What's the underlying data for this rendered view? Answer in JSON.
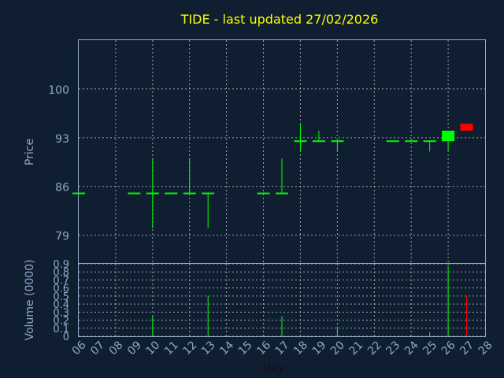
{
  "chart_data": [
    {
      "type": "candlestick",
      "title": "TIDE - last updated 27/02/2026",
      "xlabel": "",
      "ylabel": "Price",
      "ylim": [
        75,
        107
      ],
      "yticks": [
        79,
        86,
        93,
        100
      ],
      "grid": true,
      "candles": [
        {
          "day": 6,
          "open": 85,
          "close": 85,
          "high": 85,
          "low": 85
        },
        {
          "day": 9,
          "open": 85,
          "close": 85,
          "high": 85,
          "low": 85
        },
        {
          "day": 10,
          "open": 85,
          "close": 85,
          "high": 90,
          "low": 80
        },
        {
          "day": 11,
          "open": 85,
          "close": 85,
          "high": 85,
          "low": 85
        },
        {
          "day": 12,
          "open": 85,
          "close": 85,
          "high": 90,
          "low": 85
        },
        {
          "day": 13,
          "open": 85,
          "close": 85,
          "high": 85,
          "low": 80
        },
        {
          "day": 16,
          "open": 85,
          "close": 85,
          "high": 85,
          "low": 85
        },
        {
          "day": 17,
          "open": 85,
          "close": 85,
          "high": 90,
          "low": 85
        },
        {
          "day": 18,
          "open": 92.5,
          "close": 92.5,
          "high": 95,
          "low": 91
        },
        {
          "day": 19,
          "open": 92.5,
          "close": 92.5,
          "high": 94,
          "low": 92.5
        },
        {
          "day": 20,
          "open": 92.5,
          "close": 92.5,
          "high": 92.5,
          "low": 91
        },
        {
          "day": 23,
          "open": 92.5,
          "close": 92.5,
          "high": 92.5,
          "low": 92.5
        },
        {
          "day": 24,
          "open": 92.5,
          "close": 92.5,
          "high": 92.5,
          "low": 92.5
        },
        {
          "day": 25,
          "open": 92.5,
          "close": 92.5,
          "high": 92.5,
          "low": 91
        },
        {
          "day": 26,
          "open": 92.5,
          "close": 94,
          "high": 94,
          "low": 91
        },
        {
          "day": 27,
          "open": 95,
          "close": 94,
          "high": 95,
          "low": 94
        }
      ],
      "colors": {
        "up": "#00ff00",
        "down": "#ff0000"
      }
    },
    {
      "type": "bar",
      "xlabel": "Day",
      "ylabel": "Volume (0000)",
      "ylim": [
        0,
        0.9
      ],
      "yticks": [
        0,
        0.1,
        0.2,
        0.3,
        0.4,
        0.5,
        0.6,
        0.7,
        0.8,
        0.9
      ],
      "ytick_labels": [
        "0",
        "0.1",
        "0.2",
        "0.3",
        "0.4",
        "0.5",
        "0.6",
        "0.7",
        "0.8",
        "0.9"
      ],
      "x_ticks": [
        6,
        7,
        8,
        9,
        10,
        11,
        12,
        13,
        14,
        15,
        16,
        17,
        18,
        19,
        20,
        21,
        22,
        23,
        24,
        25,
        26,
        27,
        28
      ],
      "x_tick_labels": [
        "06",
        "07",
        "08",
        "09",
        "10",
        "11",
        "12",
        "13",
        "14",
        "15",
        "16",
        "17",
        "18",
        "19",
        "20",
        "21",
        "22",
        "23",
        "24",
        "25",
        "26",
        "27",
        "28"
      ],
      "grid": true,
      "bars": [
        {
          "day": 10,
          "value": 0.25,
          "color": "#00ff00"
        },
        {
          "day": 13,
          "value": 0.5,
          "color": "#00ff00"
        },
        {
          "day": 17,
          "value": 0.25,
          "color": "#00ff00"
        },
        {
          "day": 20,
          "value": 0.12,
          "color": "#00ff00"
        },
        {
          "day": 25,
          "value": 0.05,
          "color": "#00ff00"
        },
        {
          "day": 26,
          "value": 0.87,
          "color": "#00ff00"
        },
        {
          "day": 27,
          "value": 0.5,
          "color": "#ff0000"
        }
      ]
    }
  ],
  "colors": {
    "background": "#0f1e30",
    "title": "#ffff00",
    "axis": "#8fa8c8"
  }
}
